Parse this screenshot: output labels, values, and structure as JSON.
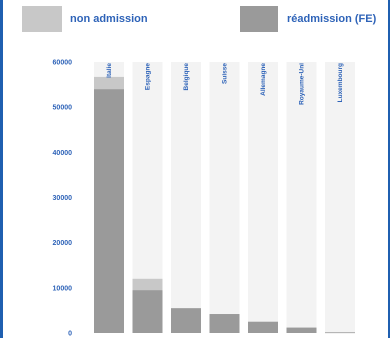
{
  "chart_data": {
    "type": "bar",
    "stacked": true,
    "categories": [
      "Italie",
      "Espagne",
      "Belgique",
      "Suisse",
      "Allemagne",
      "Royaume-Uni",
      "Luxembourg"
    ],
    "series": [
      {
        "name": "réadmission (FE)",
        "values": [
          54000,
          9500,
          5500,
          4200,
          2500,
          1200,
          150
        ]
      },
      {
        "name": "non admission",
        "values": [
          2700,
          2500,
          0,
          0,
          0,
          0,
          0
        ]
      }
    ],
    "yticks": [
      0,
      10000,
      20000,
      30000,
      40000,
      50000,
      60000
    ],
    "ylim": [
      0,
      60000
    ],
    "legend": "top",
    "colors": {
      "readmission": "#9a9a9a",
      "non_admission": "#c8c8c8",
      "column_bg": "#f3f3f3",
      "text": "#2e63b8",
      "border": "#1f5fb0"
    }
  }
}
